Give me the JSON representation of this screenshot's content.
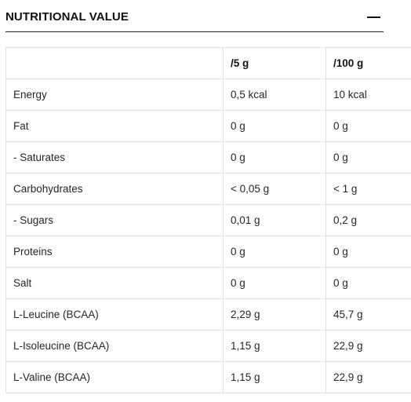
{
  "section": {
    "title": "NUTRITIONAL VALUE",
    "toggle_icon": "minus-icon"
  },
  "table": {
    "columns": [
      "",
      "/5 g",
      "/100 g"
    ],
    "rows": [
      {
        "nutrient": "Energy",
        "per_5g": "0,5 kcal",
        "per_100g": "10 kcal"
      },
      {
        "nutrient": "Fat",
        "per_5g": "0 g",
        "per_100g": "0 g"
      },
      {
        "nutrient": "- Saturates",
        "per_5g": "0 g",
        "per_100g": "0 g"
      },
      {
        "nutrient": "Carbohydrates",
        "per_5g": "< 0,05 g",
        "per_100g": "< 1 g"
      },
      {
        "nutrient": "- Sugars",
        "per_5g": "0,01 g",
        "per_100g": "0,2 g"
      },
      {
        "nutrient": "Proteins",
        "per_5g": "0 g",
        "per_100g": "0 g"
      },
      {
        "nutrient": "Salt",
        "per_5g": "0 g",
        "per_100g": "0 g"
      },
      {
        "nutrient": "L-Leucine (BCAA)",
        "per_5g": "2,29 g",
        "per_100g": "45,7 g"
      },
      {
        "nutrient": "L-Isoleucine (BCAA)",
        "per_5g": "1,15 g",
        "per_100g": "22,9 g"
      },
      {
        "nutrient": "L-Valine (BCAA)",
        "per_5g": "1,15 g",
        "per_100g": "22,9 g"
      }
    ]
  }
}
